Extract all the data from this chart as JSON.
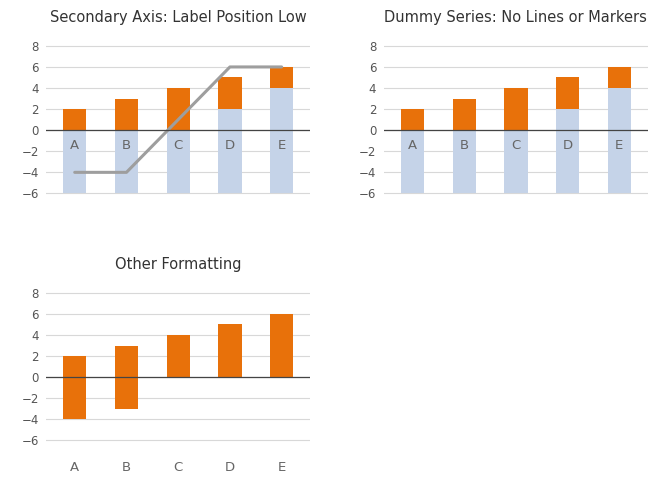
{
  "categories": [
    "A",
    "B",
    "C",
    "D",
    "E"
  ],
  "orange_values": [
    2,
    3,
    4,
    5,
    6
  ],
  "blue_full_tops": [
    2,
    3,
    4,
    5,
    6
  ],
  "orange_bottoms_chart12": [
    0,
    0,
    0,
    2,
    4
  ],
  "line_values": [
    -4,
    -4,
    1,
    6,
    6
  ],
  "chart3_bottoms": [
    -4,
    -3,
    0,
    0,
    0
  ],
  "chart3_tops": [
    2,
    3,
    4,
    5,
    6
  ],
  "orange_color": "#E8710A",
  "blue_color": "#C5D3E8",
  "line_color": "#9E9E9E",
  "background_color": "#ffffff",
  "grid_color": "#d8d8d8",
  "ylim": [
    -7,
    9.5
  ],
  "yticks": [
    -6,
    -4,
    -2,
    0,
    2,
    4,
    6,
    8
  ],
  "title1": "Secondary Axis: Label Position Low",
  "title2": "Dummy Series: No Lines or Markers",
  "title3": "Other Formatting",
  "title_fontsize": 10.5,
  "cat_label_fontsize": 9.5,
  "cat_label_color": "#666666",
  "zero_line_color": "#444444",
  "bar_width": 0.45
}
